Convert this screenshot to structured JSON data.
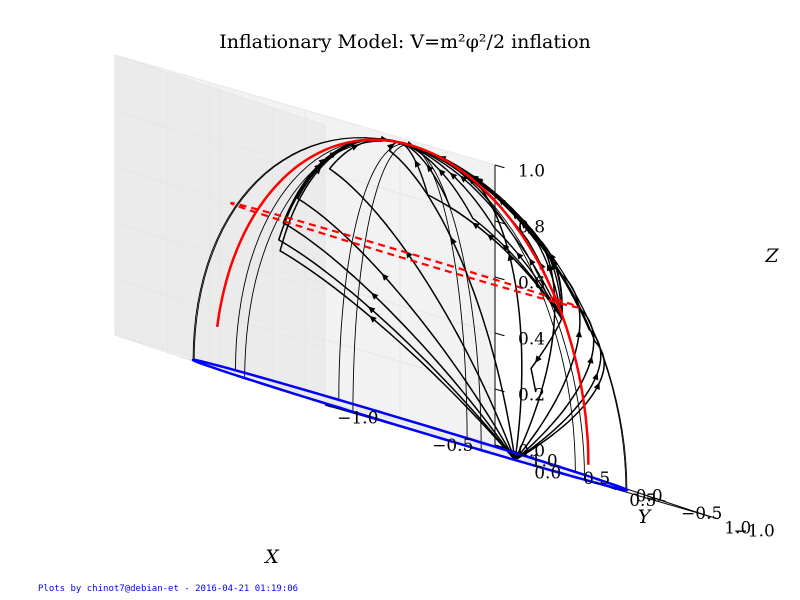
{
  "chart_data": {
    "type": "3d-line",
    "title": "Inflationary Model: V=m²φ²/2 inflation",
    "xlabel": "X",
    "ylabel": "Y",
    "zlabel": "Z",
    "xlim": [
      -1.0,
      1.0
    ],
    "ylim": [
      -1.0,
      1.0
    ],
    "zlim": [
      0.0,
      1.0
    ],
    "x_ticks": [
      "−1.0",
      "−0.5",
      "0.0",
      "0.5",
      "1.0"
    ],
    "y_ticks": [
      "−1.0",
      "−0.5",
      "0.0",
      "0.5",
      "1.0"
    ],
    "z_ticks": [
      "0.0",
      "0.2",
      "0.4",
      "0.6",
      "0.8",
      "1.0"
    ],
    "grid": true,
    "series": [
      {
        "role": "equator circle z=0",
        "color": "#0000ff",
        "style": "solid"
      },
      {
        "role": "meridian arc",
        "color": "#ff0000",
        "style": "solid"
      },
      {
        "role": "latitude circle z≈0.6",
        "color": "#ff0000",
        "style": "dashed"
      },
      {
        "role": "phase-space trajectories with arrows",
        "color": "#000000",
        "style": "solid"
      }
    ]
  },
  "footer": "Plots by chinot7@debian-et - 2016-04-21 01:19:06",
  "colors": {
    "equator": "#0000ff",
    "separatrix": "#ff0000",
    "trajectories": "#000000",
    "pane": "#f2f2f2",
    "grid": "#e6e6e6",
    "footer_text": "#0000ff"
  }
}
